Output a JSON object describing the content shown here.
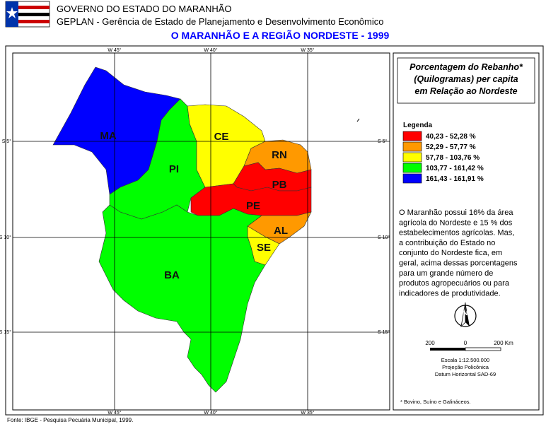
{
  "header": {
    "agency": "GOVERNO DO ESTADO DO MARANHÃO",
    "department": "GEPLAN - Gerência de Estado de Planejamento e Desenvolvimento Econômico",
    "title": "O MARANHÃO E A REGIÃO NORDESTE - 1999"
  },
  "map": {
    "states": [
      "MA",
      "PI",
      "CE",
      "RN",
      "PB",
      "PE",
      "AL",
      "SE",
      "BA"
    ],
    "longitude_labels": [
      "W 45°",
      "W 40°",
      "W 35°"
    ],
    "latitude_labels": [
      "S 5°",
      "S 10°",
      "S 15°"
    ]
  },
  "panel": {
    "title_lines": [
      "Porcentagem do Rebanho*",
      "(Quilogramas) per capita",
      "em Relação ao Nordeste"
    ],
    "legend": {
      "title": "Legenda",
      "items": [
        {
          "label": "40,23 - 52,28 %",
          "color": "#ff0000"
        },
        {
          "label": "52,29 - 57,77 %",
          "color": "#ff9900"
        },
        {
          "label": "57,78 - 103,76 %",
          "color": "#ffff00"
        },
        {
          "label": "103,77 - 161,42 %",
          "color": "#00ff00"
        },
        {
          "label": "161,43 - 161,91 %",
          "color": "#0000ff"
        }
      ]
    },
    "description_lines": [
      "O Maranhão possui 16% da área",
      "agrícola do Nordeste e 15 % dos",
      "estabelecimentos agrícolas. Mas,",
      "a contribuição do Estado no",
      "conjunto do Nordeste fica, em",
      "geral, acima dessas porcentagens",
      "para um grande número de",
      "produtos agropecuários ou para",
      "indicadores de produtividade."
    ],
    "north": "N",
    "scale": {
      "labels": [
        "200",
        "0",
        "200 Km"
      ],
      "lines": [
        "Escala 1:12.500.000",
        "Projeção Policônica",
        "Datum Horizontal SAD-69"
      ]
    },
    "footnote": "* Bovino, Suíno e Galináceos."
  },
  "footer": {
    "source": "Fonte: IBGE - Pesquisa Pecuária Municipal, 1999."
  }
}
